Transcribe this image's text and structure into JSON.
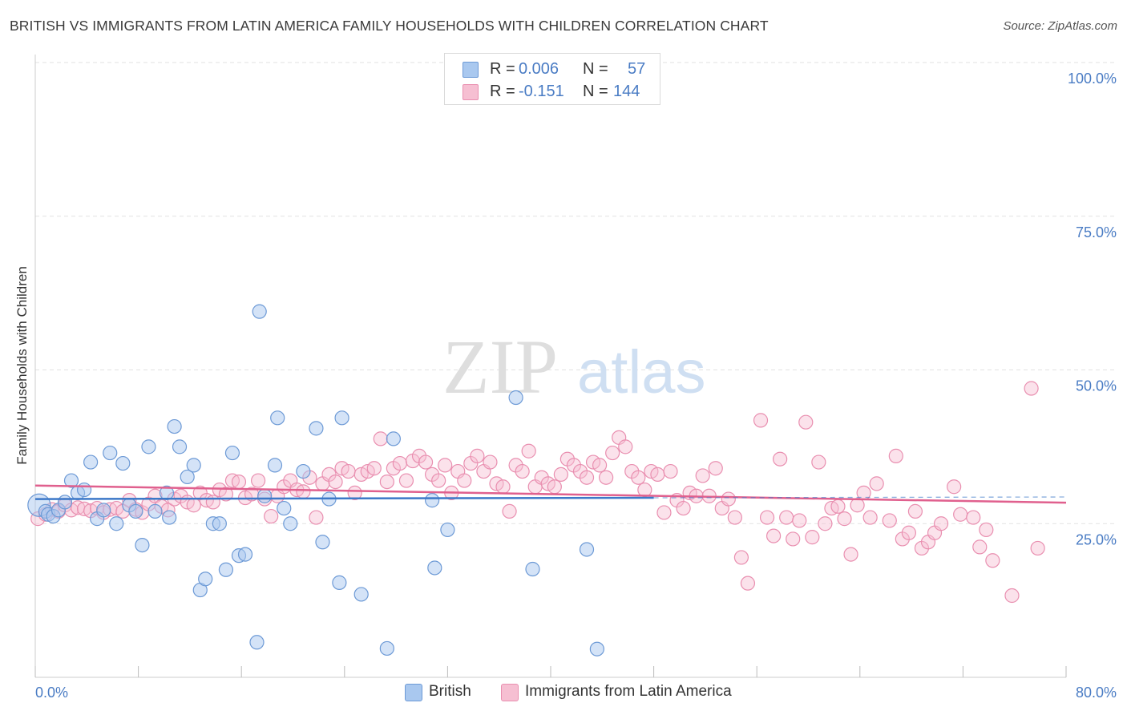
{
  "header": {
    "title": "BRITISH VS IMMIGRANTS FROM LATIN AMERICA FAMILY HOUSEHOLDS WITH CHILDREN CORRELATION CHART",
    "source": "Source: ZipAtlas.com"
  },
  "watermark": {
    "zip": "ZIP",
    "atlas": "atlas"
  },
  "stats": {
    "british": {
      "r_label": "R =",
      "r_value": "0.006",
      "n_label": "N =",
      "n_value": "57"
    },
    "latin": {
      "r_label": "R =",
      "r_value": "-0.151",
      "n_label": "N =",
      "n_value": "144"
    }
  },
  "legend": {
    "british": "British",
    "latin": "Immigrants from Latin America"
  },
  "colors": {
    "british_fill": "#a9c8ef",
    "british_stroke": "#6d9ad6",
    "british_line": "#3c78c8",
    "latin_fill": "#f6bfd2",
    "latin_stroke": "#e98fb0",
    "latin_line": "#e0608e",
    "axis_text": "#4a7cc4",
    "grid": "#e2e2e2"
  },
  "chart_data": {
    "type": "scatter",
    "title": "BRITISH VS IMMIGRANTS FROM LATIN AMERICA FAMILY HOUSEHOLDS WITH CHILDREN CORRELATION CHART",
    "xlabel": "",
    "ylabel": "Family Households with Children",
    "xlim": [
      0,
      80
    ],
    "ylim": [
      0,
      100
    ],
    "x_tick_labels": [
      "0.0%",
      "80.0%"
    ],
    "y_ticks": [
      25,
      50,
      75,
      100
    ],
    "y_tick_labels": [
      "25.0%",
      "50.0%",
      "75.0%",
      "100.0%"
    ],
    "grid": true,
    "legend_position": "bottom",
    "series": [
      {
        "name": "British",
        "trend": {
          "x": [
            0,
            48
          ],
          "y": [
            29.0,
            29.2
          ]
        },
        "points": [
          [
            0.3,
            28.0
          ],
          [
            0.8,
            27.0
          ],
          [
            1.0,
            26.5
          ],
          [
            1.4,
            26.2
          ],
          [
            1.8,
            27.2
          ],
          [
            2.3,
            28.5
          ],
          [
            2.8,
            32.0
          ],
          [
            3.3,
            30.0
          ],
          [
            3.8,
            30.5
          ],
          [
            4.3,
            35.0
          ],
          [
            4.8,
            25.8
          ],
          [
            5.3,
            27.2
          ],
          [
            5.8,
            36.5
          ],
          [
            6.3,
            25.0
          ],
          [
            6.8,
            34.8
          ],
          [
            7.3,
            28.0
          ],
          [
            7.8,
            27.0
          ],
          [
            8.3,
            21.5
          ],
          [
            8.8,
            37.5
          ],
          [
            9.3,
            27.0
          ],
          [
            10.2,
            30.0
          ],
          [
            10.4,
            26.0
          ],
          [
            10.8,
            40.8
          ],
          [
            11.2,
            37.5
          ],
          [
            11.8,
            32.6
          ],
          [
            12.3,
            34.5
          ],
          [
            12.8,
            14.2
          ],
          [
            13.2,
            16.0
          ],
          [
            13.8,
            25.0
          ],
          [
            14.3,
            25.0
          ],
          [
            14.8,
            17.5
          ],
          [
            15.3,
            36.5
          ],
          [
            15.8,
            19.8
          ],
          [
            16.3,
            20.0
          ],
          [
            17.2,
            5.7
          ],
          [
            17.4,
            59.5
          ],
          [
            17.8,
            29.5
          ],
          [
            18.6,
            34.5
          ],
          [
            18.8,
            42.2
          ],
          [
            19.3,
            27.5
          ],
          [
            19.8,
            25.0
          ],
          [
            20.8,
            33.5
          ],
          [
            21.8,
            40.5
          ],
          [
            22.3,
            22.0
          ],
          [
            22.8,
            29.0
          ],
          [
            23.6,
            15.4
          ],
          [
            23.8,
            42.2
          ],
          [
            25.3,
            13.5
          ],
          [
            27.3,
            4.7
          ],
          [
            27.8,
            38.8
          ],
          [
            30.8,
            28.8
          ],
          [
            31.0,
            17.8
          ],
          [
            32.0,
            24.0
          ],
          [
            37.3,
            45.5
          ],
          [
            38.6,
            17.6
          ],
          [
            42.8,
            20.8
          ],
          [
            43.6,
            4.6
          ]
        ]
      },
      {
        "name": "Immigrants from Latin America",
        "trend": {
          "x": [
            0,
            80
          ],
          "y": [
            31.2,
            28.4
          ]
        },
        "points": [
          [
            0.2,
            25.8
          ],
          [
            0.8,
            26.5
          ],
          [
            1.3,
            27.3
          ],
          [
            1.8,
            27.0
          ],
          [
            2.3,
            28.0
          ],
          [
            2.8,
            27.2
          ],
          [
            3.3,
            27.6
          ],
          [
            3.8,
            27.4
          ],
          [
            4.3,
            27.1
          ],
          [
            4.8,
            27.5
          ],
          [
            5.3,
            26.8
          ],
          [
            5.8,
            27.3
          ],
          [
            6.3,
            27.5
          ],
          [
            6.8,
            27.0
          ],
          [
            7.3,
            28.8
          ],
          [
            7.8,
            27.3
          ],
          [
            8.3,
            26.8
          ],
          [
            8.8,
            28.2
          ],
          [
            9.3,
            29.5
          ],
          [
            9.8,
            27.8
          ],
          [
            10.3,
            27.2
          ],
          [
            10.8,
            29.0
          ],
          [
            11.3,
            29.5
          ],
          [
            11.8,
            28.5
          ],
          [
            12.3,
            28.0
          ],
          [
            12.8,
            30.0
          ],
          [
            13.3,
            28.8
          ],
          [
            13.8,
            28.5
          ],
          [
            14.3,
            30.5
          ],
          [
            14.8,
            29.8
          ],
          [
            15.3,
            32.0
          ],
          [
            15.8,
            31.8
          ],
          [
            16.3,
            29.2
          ],
          [
            16.8,
            29.8
          ],
          [
            17.3,
            32.0
          ],
          [
            17.8,
            29.0
          ],
          [
            18.3,
            26.2
          ],
          [
            18.8,
            29.5
          ],
          [
            19.3,
            31.0
          ],
          [
            19.8,
            32.0
          ],
          [
            20.3,
            30.5
          ],
          [
            20.8,
            30.2
          ],
          [
            21.3,
            32.5
          ],
          [
            21.8,
            26.0
          ],
          [
            22.3,
            31.5
          ],
          [
            22.8,
            33.0
          ],
          [
            23.3,
            31.8
          ],
          [
            23.8,
            34.0
          ],
          [
            24.3,
            33.5
          ],
          [
            24.8,
            30.0
          ],
          [
            25.3,
            33.0
          ],
          [
            25.8,
            33.5
          ],
          [
            26.3,
            34.0
          ],
          [
            26.8,
            38.8
          ],
          [
            27.3,
            31.8
          ],
          [
            27.8,
            34.0
          ],
          [
            28.3,
            34.8
          ],
          [
            28.8,
            32.0
          ],
          [
            29.3,
            35.2
          ],
          [
            29.8,
            36.0
          ],
          [
            30.3,
            35.0
          ],
          [
            30.8,
            33.0
          ],
          [
            31.3,
            32.0
          ],
          [
            31.8,
            34.5
          ],
          [
            32.3,
            30.0
          ],
          [
            32.8,
            33.5
          ],
          [
            33.3,
            32.0
          ],
          [
            33.8,
            34.8
          ],
          [
            34.3,
            36.0
          ],
          [
            34.8,
            33.5
          ],
          [
            35.3,
            35.0
          ],
          [
            35.8,
            31.5
          ],
          [
            36.3,
            31.0
          ],
          [
            36.8,
            27.0
          ],
          [
            37.3,
            34.5
          ],
          [
            37.8,
            33.5
          ],
          [
            38.3,
            36.8
          ],
          [
            38.8,
            31.0
          ],
          [
            39.3,
            32.5
          ],
          [
            39.8,
            31.5
          ],
          [
            40.3,
            31.0
          ],
          [
            40.8,
            33.0
          ],
          [
            41.3,
            35.5
          ],
          [
            41.8,
            34.5
          ],
          [
            42.3,
            33.5
          ],
          [
            42.8,
            32.5
          ],
          [
            43.3,
            35.0
          ],
          [
            43.8,
            34.5
          ],
          [
            44.3,
            32.5
          ],
          [
            44.8,
            36.5
          ],
          [
            45.3,
            39.0
          ],
          [
            45.8,
            37.5
          ],
          [
            46.3,
            33.5
          ],
          [
            46.8,
            32.5
          ],
          [
            47.3,
            30.5
          ],
          [
            47.8,
            33.5
          ],
          [
            48.3,
            33.0
          ],
          [
            48.8,
            26.8
          ],
          [
            49.3,
            33.5
          ],
          [
            49.8,
            28.8
          ],
          [
            50.3,
            27.5
          ],
          [
            50.8,
            30.0
          ],
          [
            51.3,
            29.5
          ],
          [
            51.8,
            32.8
          ],
          [
            52.3,
            29.5
          ],
          [
            52.8,
            34.0
          ],
          [
            53.3,
            27.5
          ],
          [
            53.8,
            29.0
          ],
          [
            54.3,
            26.0
          ],
          [
            54.8,
            19.5
          ],
          [
            55.3,
            15.3
          ],
          [
            56.3,
            41.8
          ],
          [
            56.8,
            26.0
          ],
          [
            57.3,
            23.0
          ],
          [
            57.8,
            35.5
          ],
          [
            58.3,
            26.0
          ],
          [
            58.8,
            22.5
          ],
          [
            59.3,
            25.5
          ],
          [
            59.8,
            41.5
          ],
          [
            60.3,
            22.8
          ],
          [
            60.8,
            35.0
          ],
          [
            61.3,
            25.0
          ],
          [
            61.8,
            27.5
          ],
          [
            62.3,
            27.8
          ],
          [
            62.8,
            25.8
          ],
          [
            63.3,
            20.0
          ],
          [
            63.8,
            28.0
          ],
          [
            64.3,
            30.0
          ],
          [
            64.8,
            26.0
          ],
          [
            65.3,
            31.5
          ],
          [
            66.3,
            25.5
          ],
          [
            66.8,
            36.0
          ],
          [
            67.3,
            22.5
          ],
          [
            67.8,
            23.5
          ],
          [
            68.3,
            27.0
          ],
          [
            68.8,
            21.0
          ],
          [
            69.3,
            22.0
          ],
          [
            69.8,
            23.5
          ],
          [
            70.3,
            25.0
          ],
          [
            71.3,
            31.0
          ],
          [
            71.8,
            26.5
          ],
          [
            72.8,
            26.0
          ],
          [
            73.3,
            21.2
          ],
          [
            73.8,
            24.0
          ],
          [
            74.3,
            19.0
          ],
          [
            75.8,
            13.3
          ],
          [
            77.3,
            47.0
          ],
          [
            77.8,
            21.0
          ]
        ]
      }
    ]
  }
}
